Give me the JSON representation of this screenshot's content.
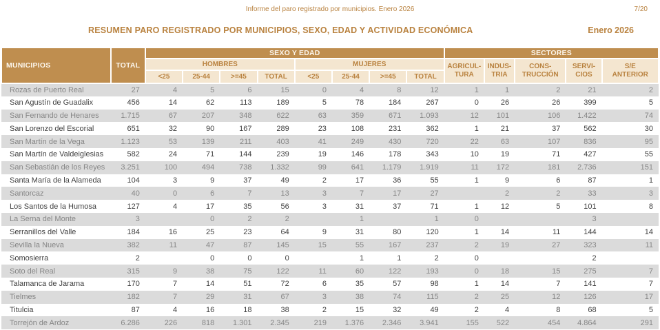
{
  "page": {
    "header_line": "Informe del paro registrado por municipios. Enero 2026",
    "page_number": "7/20",
    "title": "RESUMEN PARO REGISTRADO POR MUNICIPIOS, SEXO, EDAD Y ACTIVIDAD ECONÓMICA",
    "period": "Enero 2026"
  },
  "colors": {
    "brown": "#BF8E4F",
    "cream": "#F4E6D0",
    "brown_text": "#B9823F",
    "stripe": "#DBDBDB",
    "stripe_text": "#868686",
    "row_text": "#3F3F3F"
  },
  "table": {
    "headers": {
      "municipios": "MUNICIPIOS",
      "total": "TOTAL",
      "sexo_edad": "SEXO Y EDAD",
      "sectores": "SECTORES",
      "hombres": "HOMBRES",
      "mujeres": "MUJERES",
      "age_cols": [
        "<25",
        "25-44",
        ">=45",
        "TOTAL"
      ],
      "sector_cols": [
        "AGRICUL-\nTURA",
        "INDUS-\nTRIA",
        "CONS-\nTRUCCIÓN",
        "SERVI-\nCIOS",
        "S/E\nANTERIOR"
      ]
    },
    "rows": [
      {
        "municipio": "Rozas de Puerto Real",
        "values": [
          "27",
          "4",
          "5",
          "6",
          "15",
          "0",
          "4",
          "8",
          "12",
          "1",
          "1",
          "2",
          "21",
          "2"
        ]
      },
      {
        "municipio": "San Agustín de Guadalix",
        "values": [
          "456",
          "14",
          "62",
          "113",
          "189",
          "5",
          "78",
          "184",
          "267",
          "0",
          "26",
          "26",
          "399",
          "5"
        ]
      },
      {
        "municipio": "San Fernando de Henares",
        "values": [
          "1.715",
          "67",
          "207",
          "348",
          "622",
          "63",
          "359",
          "671",
          "1.093",
          "12",
          "101",
          "106",
          "1.422",
          "74"
        ]
      },
      {
        "municipio": "San Lorenzo del Escorial",
        "values": [
          "651",
          "32",
          "90",
          "167",
          "289",
          "23",
          "108",
          "231",
          "362",
          "1",
          "21",
          "37",
          "562",
          "30"
        ]
      },
      {
        "municipio": "San Martín de la Vega",
        "values": [
          "1.123",
          "53",
          "139",
          "211",
          "403",
          "41",
          "249",
          "430",
          "720",
          "22",
          "63",
          "107",
          "836",
          "95"
        ]
      },
      {
        "municipio": "San Martín de Valdeiglesias",
        "values": [
          "582",
          "24",
          "71",
          "144",
          "239",
          "19",
          "146",
          "178",
          "343",
          "10",
          "19",
          "71",
          "427",
          "55"
        ]
      },
      {
        "municipio": "San Sebastián de los Reyes",
        "values": [
          "3.251",
          "100",
          "494",
          "738",
          "1.332",
          "99",
          "641",
          "1.179",
          "1.919",
          "11",
          "172",
          "181",
          "2.736",
          "151"
        ]
      },
      {
        "municipio": "Santa María de la Alameda",
        "values": [
          "104",
          "3",
          "9",
          "37",
          "49",
          "2",
          "17",
          "36",
          "55",
          "1",
          "9",
          "6",
          "87",
          "1"
        ]
      },
      {
        "municipio": "Santorcaz",
        "values": [
          "40",
          "0",
          "6",
          "7",
          "13",
          "3",
          "7",
          "17",
          "27",
          "",
          "2",
          "2",
          "33",
          "3"
        ]
      },
      {
        "municipio": "Los Santos de la Humosa",
        "values": [
          "127",
          "4",
          "17",
          "35",
          "56",
          "3",
          "31",
          "37",
          "71",
          "1",
          "12",
          "5",
          "101",
          "8"
        ]
      },
      {
        "municipio": "La Serna del Monte",
        "values": [
          "3",
          "",
          "0",
          "2",
          "2",
          "",
          "1",
          "",
          "1",
          "0",
          "",
          "",
          "3",
          ""
        ]
      },
      {
        "municipio": "Serranillos del Valle",
        "values": [
          "184",
          "16",
          "25",
          "23",
          "64",
          "9",
          "31",
          "80",
          "120",
          "1",
          "14",
          "11",
          "144",
          "14"
        ]
      },
      {
        "municipio": "Sevilla la Nueva",
        "values": [
          "382",
          "11",
          "47",
          "87",
          "145",
          "15",
          "55",
          "167",
          "237",
          "2",
          "19",
          "27",
          "323",
          "11"
        ]
      },
      {
        "municipio": "Somosierra",
        "values": [
          "2",
          "",
          "0",
          "0",
          "0",
          "",
          "1",
          "1",
          "2",
          "0",
          "",
          "",
          "2",
          ""
        ]
      },
      {
        "municipio": "Soto del Real",
        "values": [
          "315",
          "9",
          "38",
          "75",
          "122",
          "11",
          "60",
          "122",
          "193",
          "0",
          "18",
          "15",
          "275",
          "7"
        ]
      },
      {
        "municipio": "Talamanca de Jarama",
        "values": [
          "170",
          "7",
          "14",
          "51",
          "72",
          "6",
          "35",
          "57",
          "98",
          "1",
          "14",
          "7",
          "141",
          "7"
        ]
      },
      {
        "municipio": "Tielmes",
        "values": [
          "182",
          "7",
          "29",
          "31",
          "67",
          "3",
          "38",
          "74",
          "115",
          "2",
          "25",
          "12",
          "126",
          "17"
        ]
      },
      {
        "municipio": "Titulcia",
        "values": [
          "87",
          "4",
          "16",
          "18",
          "38",
          "2",
          "15",
          "32",
          "49",
          "2",
          "4",
          "8",
          "68",
          "5"
        ]
      },
      {
        "municipio": "Torrejón de Ardoz",
        "values": [
          "6.286",
          "226",
          "818",
          "1.301",
          "2.345",
          "219",
          "1.376",
          "2.346",
          "3.941",
          "155",
          "522",
          "454",
          "4.864",
          "291"
        ]
      }
    ]
  }
}
